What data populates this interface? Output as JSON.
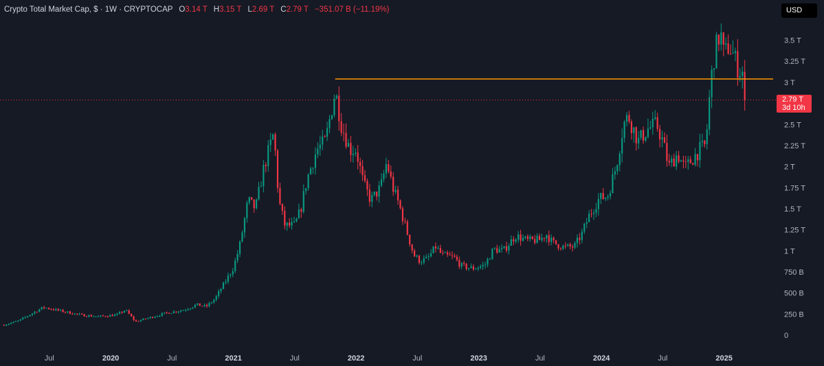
{
  "legend": {
    "title": "Crypto Total Market Cap, $ · 1W · CRYPTOCAP",
    "open_label": "O",
    "open_value": "3.14 T",
    "high_label": "H",
    "high_value": "3.15 T",
    "low_label": "L",
    "low_value": "2.69 T",
    "close_label": "C",
    "close_value": "2.79 T",
    "change": "−351.07 B (−11.19%)"
  },
  "currency_button": "USD",
  "last_price": {
    "value": "2.79 T",
    "countdown": "3d 10h"
  },
  "colors": {
    "up": "#089981",
    "down": "#f23645",
    "resistance": "#ff9800",
    "background": "#161a25"
  },
  "chart_data": {
    "type": "candlestick",
    "interval": "1W",
    "y_unit": "USD trillions",
    "ylim": [
      0,
      3.7
    ],
    "y_ticks": [
      {
        "v": 3.5,
        "label": "3.5 T"
      },
      {
        "v": 3.25,
        "label": "3.25 T"
      },
      {
        "v": 3,
        "label": "3 T"
      },
      {
        "v": 2.5,
        "label": "2.5 T"
      },
      {
        "v": 2.25,
        "label": "2.25 T"
      },
      {
        "v": 2,
        "label": "2 T"
      },
      {
        "v": 1.75,
        "label": "1.75 T"
      },
      {
        "v": 1.5,
        "label": "1.5 T"
      },
      {
        "v": 1.25,
        "label": "1.25 T"
      },
      {
        "v": 1,
        "label": "1 T"
      },
      {
        "v": 0.75,
        "label": "750 B"
      },
      {
        "v": 0.5,
        "label": "500 B"
      },
      {
        "v": 0.25,
        "label": "250 B"
      },
      {
        "v": 0,
        "label": "0"
      }
    ],
    "x_ticks": [
      {
        "t": 2019.5,
        "label": "Jul",
        "year": false
      },
      {
        "t": 2020.0,
        "label": "2020",
        "year": true
      },
      {
        "t": 2020.5,
        "label": "Jul",
        "year": false
      },
      {
        "t": 2021.0,
        "label": "2021",
        "year": true
      },
      {
        "t": 2021.5,
        "label": "Jul",
        "year": false
      },
      {
        "t": 2022.0,
        "label": "2022",
        "year": true
      },
      {
        "t": 2022.5,
        "label": "Jul",
        "year": false
      },
      {
        "t": 2023.0,
        "label": "2023",
        "year": true
      },
      {
        "t": 2023.5,
        "label": "Jul",
        "year": false
      },
      {
        "t": 2024.0,
        "label": "2024",
        "year": true
      },
      {
        "t": 2024.5,
        "label": "Jul",
        "year": false
      },
      {
        "t": 2025.0,
        "label": "2025",
        "year": true
      }
    ],
    "xlim": [
      2019.12,
      2025.4
    ],
    "resistance_level": 3.04,
    "resistance_start": 2021.83,
    "last_close": 2.79,
    "price_path": [
      [
        2019.13,
        0.12
      ],
      [
        2019.25,
        0.17
      ],
      [
        2019.45,
        0.33
      ],
      [
        2019.55,
        0.3
      ],
      [
        2019.75,
        0.24
      ],
      [
        2019.9,
        0.22
      ],
      [
        2020.05,
        0.24
      ],
      [
        2020.12,
        0.3
      ],
      [
        2020.2,
        0.16
      ],
      [
        2020.3,
        0.2
      ],
      [
        2020.45,
        0.26
      ],
      [
        2020.6,
        0.3
      ],
      [
        2020.7,
        0.36
      ],
      [
        2020.78,
        0.34
      ],
      [
        2020.85,
        0.43
      ],
      [
        2020.92,
        0.6
      ],
      [
        2021.0,
        0.8
      ],
      [
        2021.05,
        1.05
      ],
      [
        2021.12,
        1.6
      ],
      [
        2021.18,
        1.5
      ],
      [
        2021.25,
        2.0
      ],
      [
        2021.33,
        2.4
      ],
      [
        2021.37,
        1.6
      ],
      [
        2021.42,
        1.3
      ],
      [
        2021.5,
        1.3
      ],
      [
        2021.55,
        1.5
      ],
      [
        2021.6,
        1.85
      ],
      [
        2021.68,
        2.2
      ],
      [
        2021.75,
        2.3
      ],
      [
        2021.83,
        2.9
      ],
      [
        2021.88,
        2.5
      ],
      [
        2021.95,
        2.2
      ],
      [
        2022.0,
        2.2
      ],
      [
        2022.06,
        1.8
      ],
      [
        2022.12,
        1.6
      ],
      [
        2022.2,
        1.75
      ],
      [
        2022.25,
        2.05
      ],
      [
        2022.3,
        1.75
      ],
      [
        2022.35,
        1.55
      ],
      [
        2022.42,
        1.2
      ],
      [
        2022.47,
        0.95
      ],
      [
        2022.52,
        0.88
      ],
      [
        2022.58,
        0.9
      ],
      [
        2022.65,
        1.05
      ],
      [
        2022.7,
        0.95
      ],
      [
        2022.8,
        0.92
      ],
      [
        2022.86,
        0.82
      ],
      [
        2022.95,
        0.79
      ],
      [
        2023.05,
        0.83
      ],
      [
        2023.12,
        1.02
      ],
      [
        2023.2,
        1.0
      ],
      [
        2023.3,
        1.18
      ],
      [
        2023.4,
        1.12
      ],
      [
        2023.5,
        1.13
      ],
      [
        2023.55,
        1.2
      ],
      [
        2023.6,
        1.1
      ],
      [
        2023.7,
        1.04
      ],
      [
        2023.78,
        1.05
      ],
      [
        2023.84,
        1.2
      ],
      [
        2023.9,
        1.42
      ],
      [
        2023.98,
        1.62
      ],
      [
        2024.05,
        1.65
      ],
      [
        2024.12,
        2.0
      ],
      [
        2024.18,
        2.5
      ],
      [
        2024.22,
        2.6
      ],
      [
        2024.3,
        2.3
      ],
      [
        2024.38,
        2.45
      ],
      [
        2024.45,
        2.5
      ],
      [
        2024.5,
        2.3
      ],
      [
        2024.55,
        2.0
      ],
      [
        2024.62,
        2.15
      ],
      [
        2024.68,
        1.98
      ],
      [
        2024.72,
        2.05
      ],
      [
        2024.8,
        2.2
      ],
      [
        2024.85,
        2.25
      ],
      [
        2024.88,
        2.8
      ],
      [
        2024.91,
        3.25
      ],
      [
        2024.95,
        3.5
      ],
      [
        2024.97,
        3.6
      ],
      [
        2025.0,
        3.3
      ],
      [
        2025.04,
        3.45
      ],
      [
        2025.08,
        3.3
      ],
      [
        2025.12,
        3.15
      ],
      [
        2025.15,
        3.12
      ],
      [
        2025.18,
        2.79
      ]
    ]
  }
}
